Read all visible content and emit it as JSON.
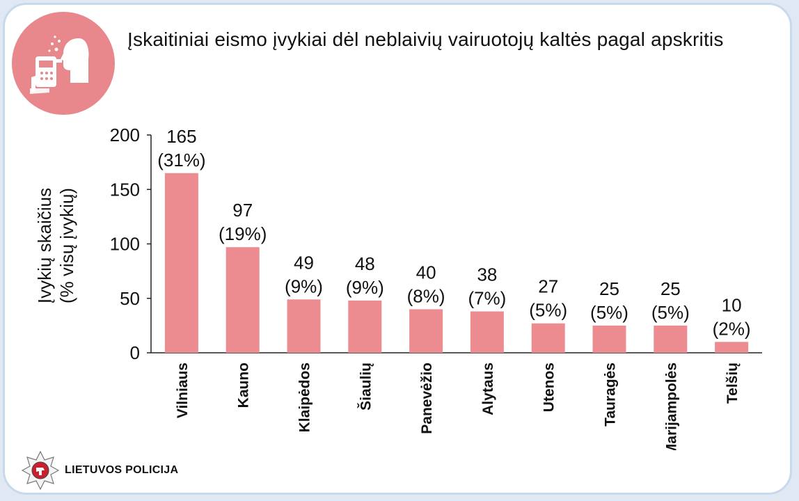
{
  "title": "Įskaitiniai eismo įvykiai dėl neblaivių vairuotojų kaltės pagal apskritis",
  "footer": {
    "org_name": "LIETUVOS POLICIJA",
    "logo_icon": "police-star-emblem-icon"
  },
  "badge": {
    "icon": "breathalyzer-icon",
    "color": "#e8878c"
  },
  "colors": {
    "bar": "#ec8c91",
    "axis": "#222222",
    "text": "#111111"
  },
  "chart_data": {
    "type": "bar",
    "title": "",
    "xlabel": "",
    "ylabel": [
      "Įvykių skaičius",
      "(% visų įvykių)"
    ],
    "ylim": [
      0,
      200
    ],
    "yticks": [
      0,
      50,
      100,
      150,
      200
    ],
    "categories": [
      "Vilniaus",
      "Kauno",
      "Klaipėdos",
      "Šiaulių",
      "Panevėžio",
      "Alytaus",
      "Utenos",
      "Tauragės",
      "Marijampolės",
      "Telšių"
    ],
    "values": [
      165,
      97,
      49,
      48,
      40,
      38,
      27,
      25,
      25,
      10
    ],
    "percent_labels": [
      "(31%)",
      "(19%)",
      "(9%)",
      "(9%)",
      "(8%)",
      "(7%)",
      "(5%)",
      "(5%)",
      "(5%)",
      "(2%)"
    ],
    "grid": false,
    "legend": "none"
  }
}
